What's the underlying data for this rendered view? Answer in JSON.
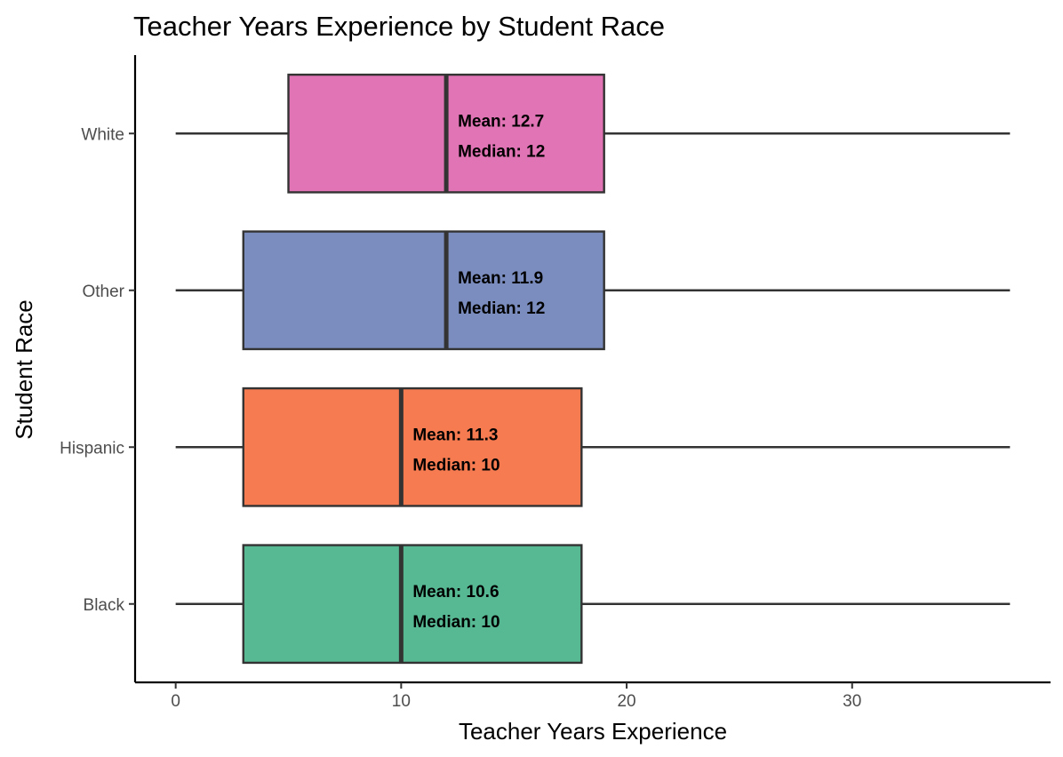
{
  "chart_data": {
    "type": "boxplot",
    "orientation": "horizontal",
    "title": "Teacher Years Experience by Student Race",
    "xlabel": "Teacher Years Experience",
    "ylabel": "Student Race",
    "xlim": [
      -1.8,
      38.8
    ],
    "x_ticks": [
      0,
      10,
      20,
      30
    ],
    "categories": [
      "Black",
      "Hispanic",
      "Other",
      "White"
    ],
    "series": [
      {
        "category": "Black",
        "min": 0,
        "q1": 3,
        "median": 10,
        "q3": 18,
        "max": 37,
        "color": "#57b994",
        "mean_label": "Mean:  10.6",
        "median_label": "Median:  10"
      },
      {
        "category": "Hispanic",
        "min": 0,
        "q1": 3,
        "median": 10,
        "q3": 18,
        "max": 37,
        "color": "#f77b51",
        "mean_label": "Mean:  11.3",
        "median_label": "Median:  10"
      },
      {
        "category": "Other",
        "min": 0,
        "q1": 3,
        "median": 12,
        "q3": 19,
        "max": 37,
        "color": "#7b8dbf",
        "mean_label": "Mean:  11.9",
        "median_label": "Median:  12"
      },
      {
        "category": "White",
        "min": 0,
        "q1": 5,
        "median": 12,
        "q3": 19,
        "max": 37,
        "color": "#e174b4",
        "mean_label": "Mean:  12.7",
        "median_label": "Median:  12"
      }
    ],
    "grid": false,
    "legend": "none"
  }
}
